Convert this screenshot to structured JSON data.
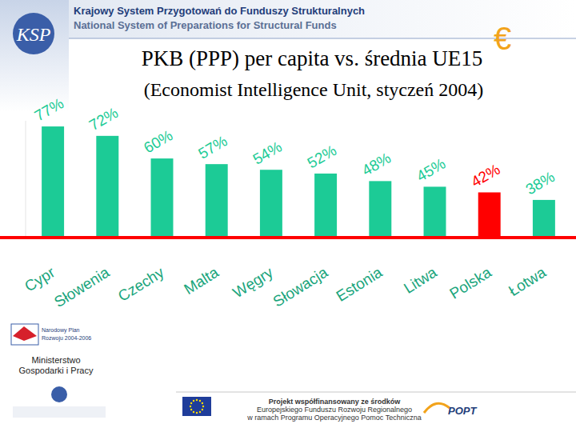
{
  "header": {
    "logo": "KSP",
    "line1": "Krajowy System Przygotowań do Funduszy Strukturalnych",
    "line2": "National System of Preparations for Structural Funds",
    "symbol": "€"
  },
  "chart_data": {
    "type": "bar",
    "title": "PKB (PPP) per capita vs. średnia UE15",
    "subtitle": "(Economist Intelligence Unit, styczeń 2004)",
    "categories": [
      "Cypr",
      "Słowenia",
      "Czechy",
      "Malta",
      "Węgry",
      "Słowacja",
      "Estonia",
      "Litwa",
      "Polska",
      "Łotwa"
    ],
    "values": [
      77,
      72,
      60,
      57,
      54,
      52,
      48,
      45,
      42,
      38
    ],
    "value_labels": [
      "77%",
      "72%",
      "60%",
      "57%",
      "54%",
      "52%",
      "48%",
      "45%",
      "42%",
      "38%"
    ],
    "colors": [
      "#1ccb96",
      "#1ccb96",
      "#1ccb96",
      "#1ccb96",
      "#1ccb96",
      "#1ccb96",
      "#1ccb96",
      "#1ccb96",
      "#ff0000",
      "#1ccb96"
    ],
    "data_labels": true,
    "ylim": [
      18,
      80
    ],
    "tick_labels": "x"
  },
  "footer": {
    "npr": [
      "Narodowy Plan",
      "Rozwoju 2004-2006"
    ],
    "ministry": [
      "Ministerstwo",
      "Gospodarki i Pracy"
    ],
    "project": [
      "Projekt współfinansowany ze środków",
      "Europejskiego Funduszu Rozwoju Regionalnego",
      "w ramach Programu Operacyjnego Pomoc Techniczna"
    ],
    "popt": "POPT"
  }
}
